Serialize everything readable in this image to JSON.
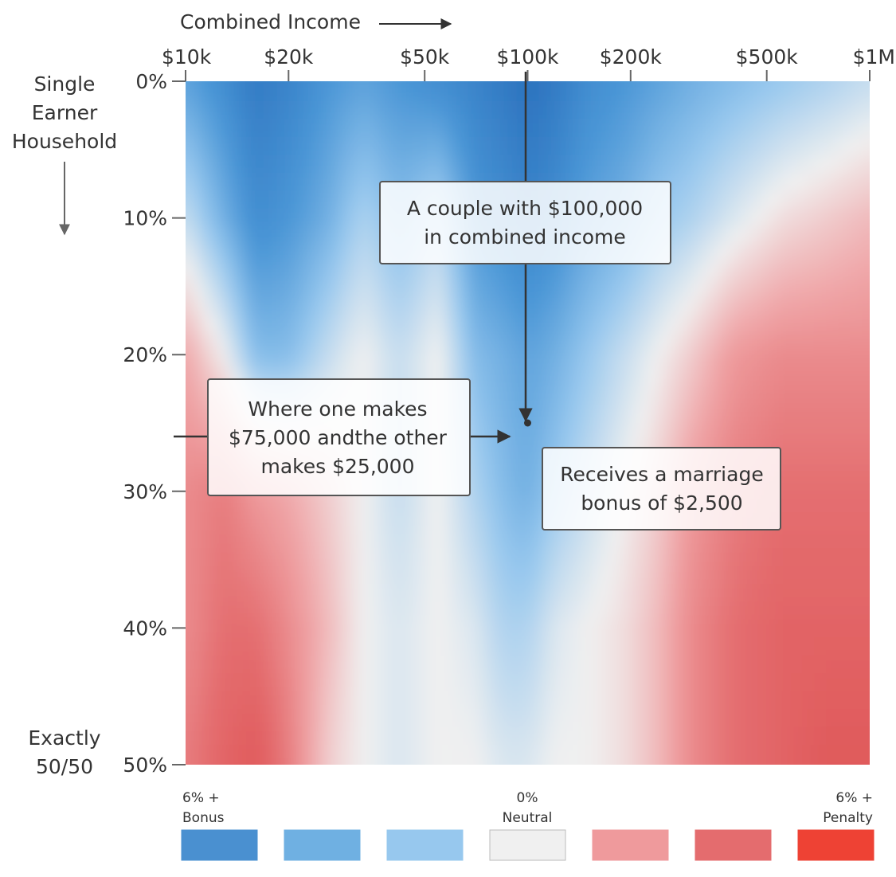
{
  "chart_data": {
    "type": "heatmap",
    "title": "",
    "x_axis": {
      "label": "Combined Income",
      "scale": "log",
      "ticks": [
        "$10k",
        "$20k",
        "$50k",
        "$100k",
        "$200k",
        "$500k",
        "$1M"
      ],
      "tick_values": [
        10000,
        20000,
        50000,
        100000,
        200000,
        500000,
        1000000
      ],
      "range": [
        10000,
        1000000
      ]
    },
    "y_axis": {
      "label_top": "Single Earner Household",
      "label_bottom": "Exactly 50/50",
      "ticks": [
        "0%",
        "10%",
        "20%",
        "30%",
        "40%",
        "50%"
      ],
      "tick_values": [
        0,
        10,
        20,
        30,
        40,
        50
      ],
      "range": [
        0,
        50
      ]
    },
    "grid": false,
    "value_scale": {
      "unit": "percent of income",
      "range": [
        -6,
        6
      ],
      "negative_meaning": "Bonus",
      "positive_meaning": "Penalty",
      "colors": [
        "#4a90d0",
        "#6fb0e2",
        "#97c8ee",
        "#f0f0f0",
        "#ef9a9c",
        "#e46c6e",
        "#ee4234"
      ]
    },
    "heatmap_profiles": {
      "x": [
        10000,
        13000,
        16000,
        20000,
        26000,
        33000,
        42000,
        55000,
        70000,
        85000,
        100000,
        120000,
        150000,
        190000,
        240000,
        300000,
        400000,
        550000,
        750000,
        1000000
      ],
      "rows": [
        {
          "y": 0,
          "values": [
            -3.5,
            -4.5,
            -5.5,
            -5,
            -4,
            -3.5,
            -4,
            -4.5,
            -5,
            -5.5,
            -6,
            -5.5,
            -4.5,
            -4,
            -3.5,
            -3,
            -2.5,
            -2,
            -1.5,
            -1
          ]
        },
        {
          "y": 10,
          "values": [
            -1,
            -3,
            -4.5,
            -4,
            -3,
            -1.5,
            -2.5,
            -1.5,
            -4,
            -4.5,
            -5,
            -4.5,
            -3.5,
            -3,
            -2,
            -1.5,
            -0.5,
            0.5,
            1,
            1.5
          ]
        },
        {
          "y": 20,
          "values": [
            2,
            0,
            -2.5,
            -2.5,
            -1,
            0,
            -1,
            0,
            -2.5,
            -3,
            -3.5,
            -3,
            -2,
            -1,
            0,
            1,
            2.5,
            3,
            3,
            3
          ]
        },
        {
          "y": 30,
          "values": [
            3,
            3.5,
            2.5,
            2,
            1,
            0,
            -1,
            0,
            -1.5,
            -2.5,
            -3,
            -2,
            -1,
            0,
            1,
            2.5,
            3.5,
            4,
            4,
            4
          ]
        },
        {
          "y": 40,
          "values": [
            3,
            4,
            4,
            3,
            1.5,
            0,
            -0.5,
            0,
            -0.5,
            -1.5,
            -1.5,
            -0.5,
            0,
            0.5,
            1.5,
            3,
            4,
            4.5,
            4.5,
            4.5
          ]
        },
        {
          "y": 50,
          "values": [
            3.5,
            4.5,
            5,
            3.5,
            1,
            0,
            -0.5,
            0,
            0,
            -0.5,
            -0.5,
            0,
            0,
            0.5,
            1.5,
            3,
            4,
            4.5,
            5,
            5
          ]
        }
      ]
    },
    "highlight_point": {
      "x": 100000,
      "y": 25,
      "value": -2.5
    },
    "annotations": [
      {
        "id": "couple",
        "lines": [
          "A couple with $100,000",
          "in combined income"
        ]
      },
      {
        "id": "split",
        "lines": [
          "Where one makes",
          "$75,000 andthe other",
          "makes $25,000"
        ]
      },
      {
        "id": "bonus",
        "lines": [
          "Receives a marriage",
          "bonus of $2,500"
        ]
      }
    ],
    "legend": {
      "placement": "bottom",
      "left_label": [
        "6% +",
        "Bonus"
      ],
      "center_label": [
        "0%",
        "Neutral"
      ],
      "right_label": [
        "6% +",
        "Penalty"
      ],
      "swatches": [
        "#4a90d0",
        "#6fb0e2",
        "#97c8ee",
        "#f0f0f0",
        "#ef9a9c",
        "#e46c6e",
        "#ee4234"
      ]
    }
  }
}
